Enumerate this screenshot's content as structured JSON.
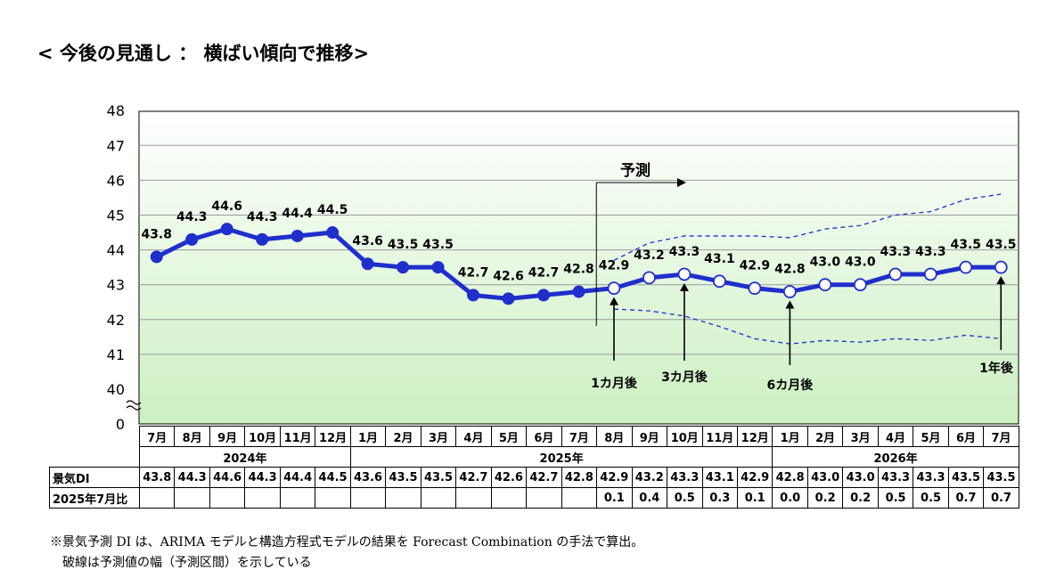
{
  "heading": "< 今後の見通し ： 横ばい傾向で推移>",
  "chart_data": {
    "type": "line",
    "y_ticks": [
      "48",
      "47",
      "46",
      "45",
      "44",
      "43",
      "42",
      "41",
      "40",
      "0"
    ],
    "ylim": [
      40,
      48
    ],
    "axis_break": true,
    "grid": true,
    "months": [
      "7月",
      "8月",
      "9月",
      "10月",
      "11月",
      "12月",
      "1月",
      "2月",
      "3月",
      "4月",
      "5月",
      "6月",
      "7月",
      "8月",
      "9月",
      "10月",
      "11月",
      "12月",
      "1月",
      "2月",
      "3月",
      "4月",
      "5月",
      "6月",
      "7月"
    ],
    "years": [
      {
        "label": "2024年",
        "span": 6
      },
      {
        "label": "2025年",
        "span": 12
      },
      {
        "label": "2026年",
        "span": 7
      }
    ],
    "series": [
      {
        "values": [
          43.8,
          44.3,
          44.6,
          44.3,
          44.4,
          44.5,
          43.6,
          43.5,
          43.5,
          42.7,
          42.6,
          42.7,
          42.8,
          42.9,
          43.2,
          43.3,
          43.1,
          42.9,
          42.8,
          43.0,
          43.0,
          43.3,
          43.3,
          43.5,
          43.5
        ],
        "labels": [
          "43.8",
          "44.3",
          "44.6",
          "44.3",
          "44.4",
          "44.5",
          "43.6",
          "43.5",
          "43.5",
          "42.7",
          "42.6",
          "42.7",
          "42.8",
          "42.9",
          "43.2",
          "43.3",
          "43.1",
          "42.9",
          "42.8",
          "43.0",
          "43.0",
          "43.3",
          "43.3",
          "43.5",
          "43.5"
        ],
        "forecast_start_index": 13,
        "style": "solid"
      },
      {
        "values": [
          null,
          null,
          null,
          null,
          null,
          null,
          null,
          null,
          null,
          null,
          null,
          null,
          null,
          43.7,
          44.2,
          44.4,
          44.4,
          44.4,
          44.35,
          44.6,
          44.7,
          45.0,
          45.1,
          45.45,
          45.6
        ],
        "style": "dashed"
      },
      {
        "values": [
          null,
          null,
          null,
          null,
          null,
          null,
          null,
          null,
          null,
          null,
          null,
          null,
          null,
          42.3,
          42.25,
          42.1,
          41.8,
          41.45,
          41.3,
          41.4,
          41.35,
          41.45,
          41.4,
          41.55,
          41.45
        ],
        "style": "dashed"
      }
    ],
    "annotations": [
      {
        "text": "予測",
        "type": "arrow",
        "start_index": 12.5
      },
      {
        "text": "1カ月後",
        "index": 13
      },
      {
        "text": "3カ月後",
        "index": 15
      },
      {
        "text": "6カ月後",
        "index": 18
      },
      {
        "text": "1年後",
        "index": 24
      }
    ],
    "colors": {
      "line": "#1f2fcc",
      "forecast_marker_fill": "#ffffff",
      "grid": "#9a9a9a",
      "bg_top": "#ffffff",
      "bg_bottom": "#ccf0c2"
    }
  },
  "table": {
    "row1_label": "景気DI",
    "row1_values": [
      "43.8",
      "44.3",
      "44.6",
      "44.3",
      "44.4",
      "44.5",
      "43.6",
      "43.5",
      "43.5",
      "42.7",
      "42.6",
      "42.7",
      "42.8",
      "42.9",
      "43.2",
      "43.3",
      "43.1",
      "42.9",
      "42.8",
      "43.0",
      "43.0",
      "43.3",
      "43.3",
      "43.5",
      "43.5"
    ],
    "row2_label": "2025年7月比",
    "row2_values": [
      "",
      "",
      "",
      "",
      "",
      "",
      "",
      "",
      "",
      "",
      "",
      "",
      "",
      "0.1",
      "0.4",
      "0.5",
      "0.3",
      "0.1",
      "0.0",
      "0.2",
      "0.2",
      "0.5",
      "0.5",
      "0.7",
      "0.7"
    ]
  },
  "footnote": {
    "line1": "※景気予測 DI は、ARIMA モデルと構造方程式モデルの結果を Forecast Combination の手法で算出。",
    "line2": "　破線は予測値の幅（予測区間）を示している"
  }
}
